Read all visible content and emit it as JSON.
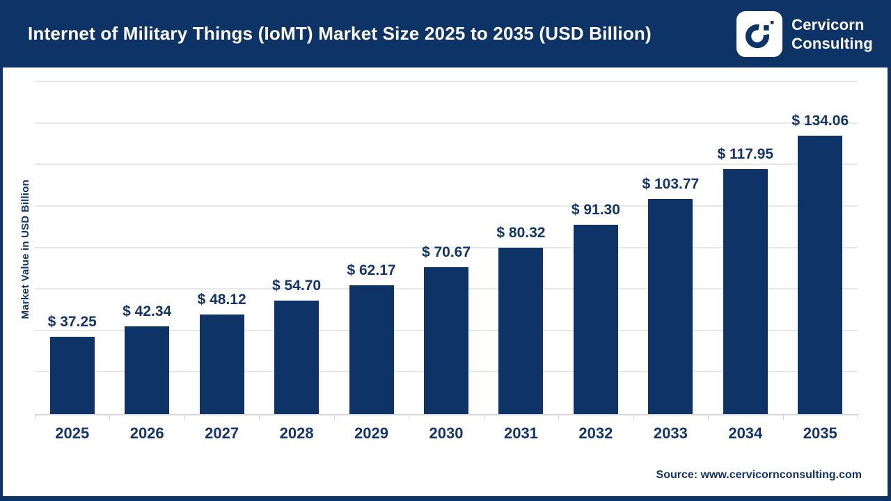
{
  "header": {
    "title": "Internet of Military Things (IoMT) Market Size 2025 to 2035 (USD Billion)",
    "logo": {
      "brand_line1": "Cervicorn",
      "brand_line2": "Consulting"
    }
  },
  "chart_data": {
    "type": "bar",
    "title": "Internet of Military Things (IoMT) Market Size 2025 to 2035 (USD Billion)",
    "categories": [
      "2025",
      "2026",
      "2027",
      "2028",
      "2029",
      "2030",
      "2031",
      "2032",
      "2033",
      "2034",
      "2035"
    ],
    "values": [
      37.25,
      42.34,
      48.12,
      54.7,
      62.17,
      70.67,
      80.32,
      91.3,
      103.77,
      117.95,
      134.06
    ],
    "value_prefix": "$ ",
    "xlabel": "",
    "ylabel": "Market Value in USD Billion",
    "ylim": [
      0,
      160
    ],
    "grid_step": 20,
    "grid": true,
    "legend": "none",
    "bar_color": "#0e3367"
  },
  "footer": {
    "source": "Source: www.cervicornconsulting.com"
  },
  "colors": {
    "navy": "#0e3367",
    "text_navy": "#13356b",
    "grid": "#e7e7e7",
    "axis": "#d6d6d6",
    "white": "#ffffff"
  }
}
